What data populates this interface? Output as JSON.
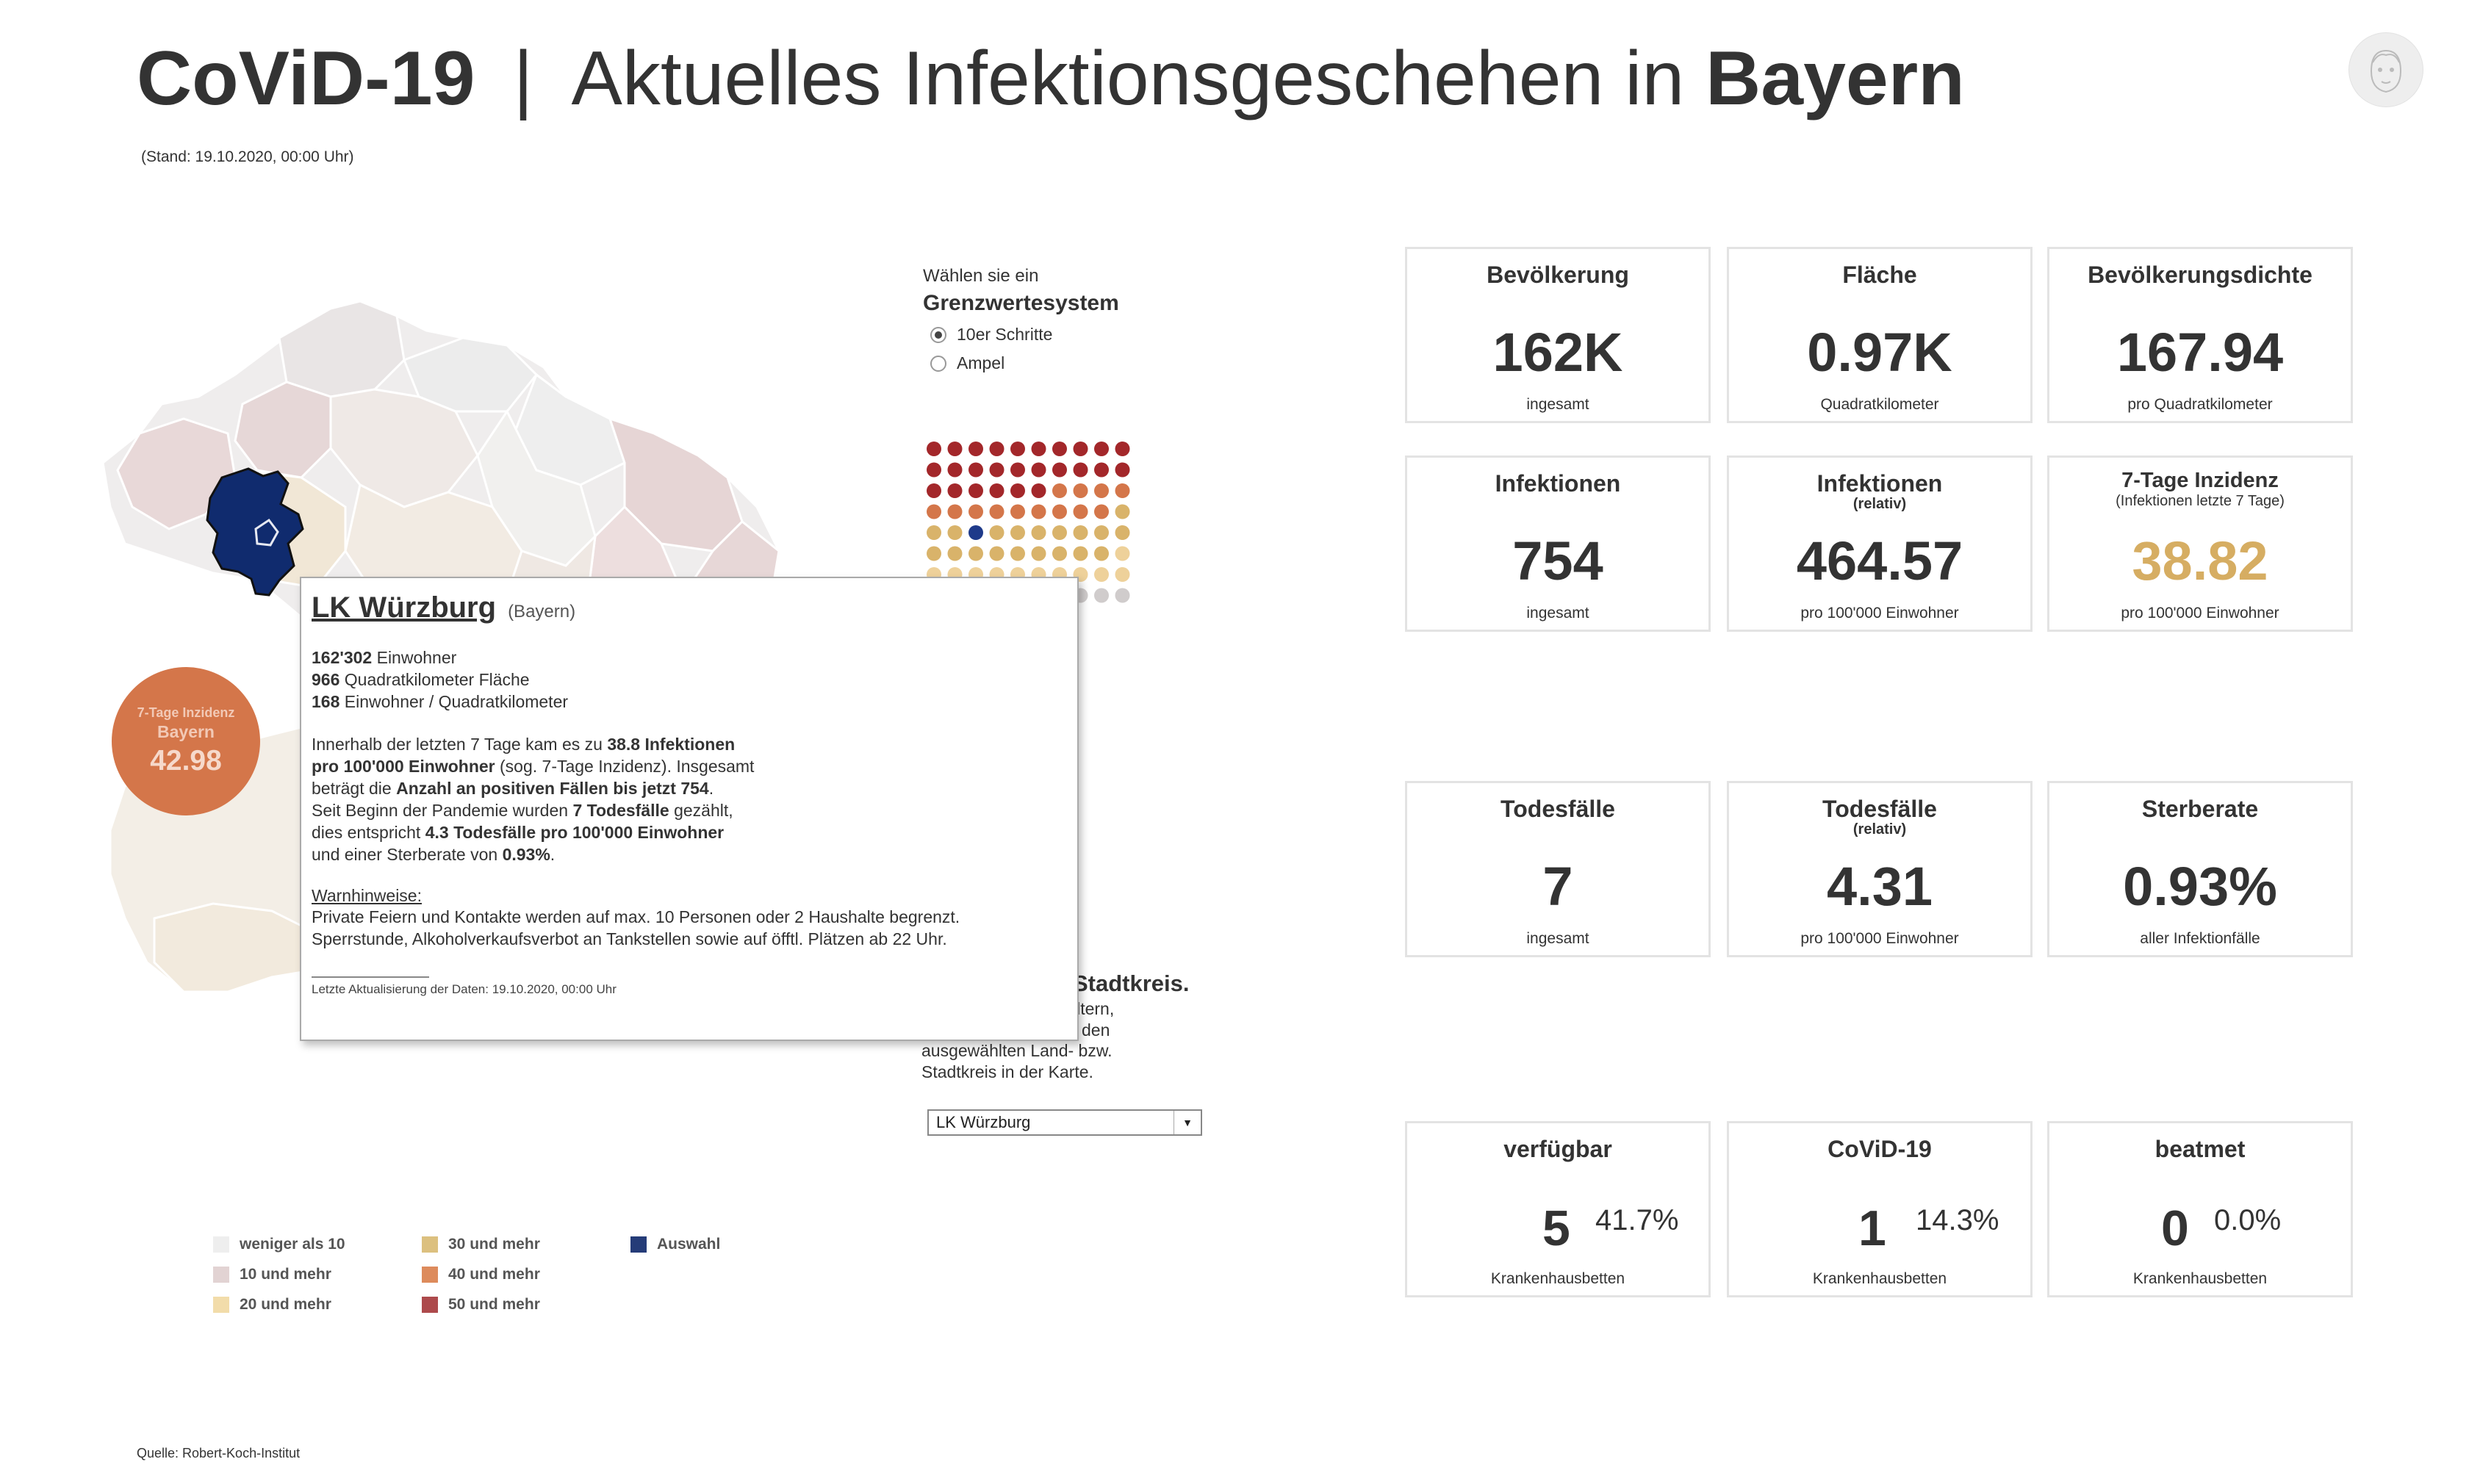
{
  "header": {
    "brand": "CoViD-19",
    "separator": "|",
    "headline_prefix": "Aktuelles Infektionsgeschehen in",
    "region": "Bayern",
    "stand": "(Stand: 19.10.2020, 00:00 Uhr)"
  },
  "bubble": {
    "label": "7-Tage Inzidenz",
    "region": "Bayern",
    "value": "42.98"
  },
  "radio_panel": {
    "intro": "Wählen sie ein",
    "heading": "Grenzwertesystem",
    "options": [
      {
        "label": "10er Schritte",
        "selected": true
      },
      {
        "label": "Ampel",
        "selected": false
      }
    ]
  },
  "dot_grid": {
    "rows": [
      [
        "#a3272a",
        "#a3272a",
        "#a3272a",
        "#a3272a",
        "#a3272a",
        "#a3272a",
        "#a3272a",
        "#a3272a",
        "#a3272a",
        "#a3272a"
      ],
      [
        "#a3272a",
        "#a3272a",
        "#a3272a",
        "#a3272a",
        "#a3272a",
        "#a3272a",
        "#a3272a",
        "#a3272a",
        "#a3272a",
        "#a3272a"
      ],
      [
        "#a3272a",
        "#a3272a",
        "#a3272a",
        "#a3272a",
        "#a3272a",
        "#a3272a",
        "#d4764a",
        "#d4764a",
        "#d4764a",
        "#d4764a"
      ],
      [
        "#d4764a",
        "#d4764a",
        "#d4764a",
        "#d4764a",
        "#d4764a",
        "#d4764a",
        "#d4764a",
        "#d4764a",
        "#d4764a",
        "#d9b36a"
      ],
      [
        "#d9b36a",
        "#d9b36a",
        "#1e3a8a",
        "#d9b36a",
        "#d9b36a",
        "#d9b36a",
        "#d9b36a",
        "#d9b36a",
        "#d9b36a",
        "#d9b36a"
      ],
      [
        "#d9b36a",
        "#d9b36a",
        "#d9b36a",
        "#d9b36a",
        "#d9b36a",
        "#d9b36a",
        "#d9b36a",
        "#d9b36a",
        "#d9b36a",
        "#eed19a"
      ],
      [
        "#eed19a",
        "#eed19a",
        "#eed19a",
        "#eed19a",
        "#eed19a",
        "#eed19a",
        "#eed19a",
        "#eed19a",
        "#eed19a",
        "#eed19a"
      ],
      [
        "#d0cccc",
        "#d0cccc",
        "#d0cccc",
        "#d0cccc",
        "#d0cccc",
        "#d0cccc",
        "#d0cccc",
        "#d0cccc",
        "#d0cccc",
        "#d0cccc"
      ]
    ]
  },
  "kreis_panel": {
    "heading_fragment": "Stadtkreis.",
    "line_a": "iltern,",
    "line_b": "den",
    "line_c": "ausgewählten Land- bzw.",
    "line_d": "Stadtkreis in der Karte.",
    "select_value": "LK Würzburg"
  },
  "tooltip": {
    "title": "LK Würzburg",
    "subtitle": "(Bayern)",
    "einwohner_num": "162'302",
    "einwohner_label": "Einwohner",
    "flaeche_num": "966",
    "flaeche_label": "Quadratkilometer Fläche",
    "dichte_num": "168",
    "dichte_label": "Einwohner / Quadratkilometer",
    "p1_a": "Innerhalb der letzten 7 Tage kam es zu",
    "p1_b": "38.8 Infektionen",
    "p1_c": "pro 100'000 Einwohner",
    "p1_d": "(sog. 7-Tage Inzidenz). Insgesamt",
    "p1_e": "beträgt die",
    "p1_f": "Anzahl an positiven Fällen bis jetzt 754",
    "p1_g": ".",
    "p1_h": "Seit Beginn der Pandemie wurden",
    "p1_i": "7 Todesfälle",
    "p1_j": "gezählt,",
    "p1_k": "dies entspricht",
    "p1_l": "4.3 Todesfälle pro 100'000 Einwohner",
    "p1_m": "und einer Sterberate von",
    "p1_n": "0.93%",
    "p1_o": ".",
    "warn_heading": "Warnhinweise:",
    "warn_1": "Private Feiern und Kontakte werden auf max. 10 Personen oder 2 Haushalte begrenzt.",
    "warn_2": "Sperrstunde, Alkoholverkaufsverbot an Tankstellen sowie auf öfftl. Plätzen ab 22 Uhr.",
    "footer": "Letzte Aktualisierung der Daten: 19.10.2020, 00:00 Uhr"
  },
  "cards": {
    "bevoelkerung": {
      "title": "Bevölkerung",
      "value": "162K",
      "unit": "ingesamt"
    },
    "flaeche": {
      "title": "Fläche",
      "value": "0.97K",
      "unit": "Quadratkilometer"
    },
    "dichte": {
      "title": "Bevölkerungsdichte",
      "value": "167.94",
      "unit": "pro Quadratkilometer"
    },
    "infektionen": {
      "title": "Infektionen",
      "value": "754",
      "unit": "ingesamt"
    },
    "infektionen_rel": {
      "title": "Infektionen",
      "sub": "(relativ)",
      "value": "464.57",
      "unit": "pro 100'000 Einwohner"
    },
    "inzidenz": {
      "title": "7-Tage Inzidenz",
      "sub": "(Infektionen letzte 7 Tage)",
      "value": "38.82",
      "unit": "pro 100'000 Einwohner",
      "accent": "#d6ad62"
    },
    "todesfaelle": {
      "title": "Todesfälle",
      "value": "7",
      "unit": "ingesamt"
    },
    "todesfaelle_rel": {
      "title": "Todesfälle",
      "sub": "(relativ)",
      "value": "4.31",
      "unit": "pro 100'000 Einwohner"
    },
    "sterberate": {
      "title": "Sterberate",
      "value": "0.93%",
      "unit": "aller Infektionfälle"
    },
    "verfuegbar": {
      "title": "verfügbar",
      "value": "5",
      "pct": "41.7%",
      "unit": "Krankenhausbetten"
    },
    "covid": {
      "title": "CoViD-19",
      "value": "1",
      "pct": "14.3%",
      "unit": "Krankenhausbetten"
    },
    "beatmet": {
      "title": "beatmet",
      "value": "0",
      "pct": "0.0%",
      "unit": "Krankenhausbetten"
    }
  },
  "legend": [
    {
      "label": "weniger als 10",
      "color": "#eeeeee"
    },
    {
      "label": "10 und mehr",
      "color": "#e2d3d3"
    },
    {
      "label": "20 und mehr",
      "color": "#f2dcaa"
    },
    {
      "label": "30 und mehr",
      "color": "#dcc07f"
    },
    {
      "label": "40 und mehr",
      "color": "#dd8b5c"
    },
    {
      "label": "50 und mehr",
      "color": "#ad4a4c"
    },
    {
      "label": "Auswahl",
      "color": "#253c78"
    }
  ],
  "source": "Quelle: Robert-Koch-Institut",
  "colors": {
    "selected_district": "#102b6e",
    "bubble": "#d4764a",
    "accent": "#d6ad62"
  }
}
